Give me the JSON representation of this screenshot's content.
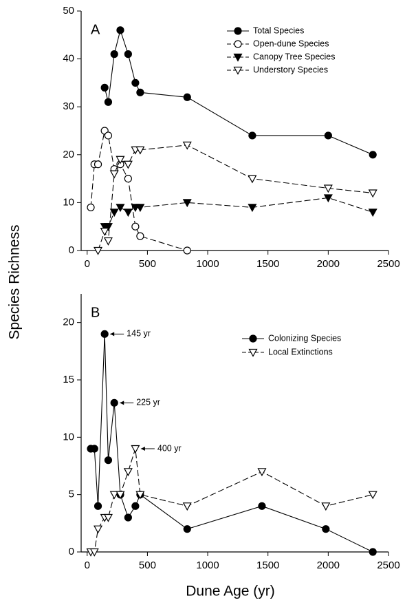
{
  "chart_data": [
    {
      "type": "line",
      "panel_label": "A",
      "ylabel": "Species Richness",
      "x": [
        30,
        60,
        90,
        145,
        175,
        225,
        275,
        340,
        400,
        440,
        830,
        1370,
        2000,
        2370
      ],
      "series": [
        {
          "name": "Total Species",
          "color": "#000000",
          "marker": "circle",
          "filled": true,
          "dashed": false,
          "values": [
            null,
            null,
            null,
            34,
            31,
            41,
            46,
            41,
            35,
            33,
            32,
            24,
            24,
            20
          ]
        },
        {
          "name": "Open-dune Species",
          "color": "#000000",
          "marker": "circle",
          "filled": false,
          "dashed": true,
          "values": [
            9,
            18,
            18,
            25,
            24,
            17,
            18,
            15,
            5,
            3,
            0,
            null,
            null,
            null
          ]
        },
        {
          "name": "Canopy Tree Species",
          "color": "#000000",
          "marker": "triangle-down",
          "filled": true,
          "dashed": true,
          "values": [
            null,
            null,
            null,
            5,
            5,
            8,
            9,
            8,
            9,
            9,
            10,
            9,
            11,
            8
          ]
        },
        {
          "name": "Understory Species",
          "color": "#000000",
          "marker": "triangle-down",
          "filled": false,
          "dashed": true,
          "values": [
            null,
            null,
            0,
            4,
            2,
            16,
            19,
            18,
            21,
            21,
            22,
            15,
            13,
            12
          ]
        }
      ],
      "xlim": [
        -50,
        2500
      ],
      "xticks": [
        0,
        500,
        1000,
        1500,
        2000,
        2500
      ],
      "ylim": [
        0,
        50
      ],
      "yticks": [
        0,
        10,
        20,
        30,
        40,
        50
      ],
      "grid": false,
      "legend": "upper right"
    },
    {
      "type": "line",
      "panel_label": "B",
      "xlabel": "Dune Age (yr)",
      "x": [
        30,
        60,
        90,
        145,
        175,
        225,
        275,
        340,
        400,
        440,
        830,
        1450,
        1980,
        2370
      ],
      "series": [
        {
          "name": "Colonizing Species",
          "color": "#000000",
          "marker": "circle",
          "filled": true,
          "dashed": false,
          "values": [
            9,
            9,
            4,
            19,
            8,
            13,
            5,
            3,
            4,
            5,
            2,
            4,
            2,
            0
          ]
        },
        {
          "name": "Local Extinctions",
          "color": "#000000",
          "marker": "triangle-down",
          "filled": false,
          "dashed": true,
          "values": [
            0,
            0,
            2,
            3,
            3,
            5,
            5,
            7,
            9,
            5,
            4,
            7,
            4,
            5
          ]
        }
      ],
      "annotations": [
        "145 yr",
        "225 yr",
        "400 yr"
      ],
      "xlim": [
        -50,
        2500
      ],
      "xticks": [
        0,
        500,
        1000,
        1500,
        2000,
        2500
      ],
      "ylim": [
        0,
        22.5
      ],
      "yticks": [
        0,
        5,
        10,
        15,
        20
      ],
      "grid": false,
      "legend": "upper right"
    }
  ]
}
